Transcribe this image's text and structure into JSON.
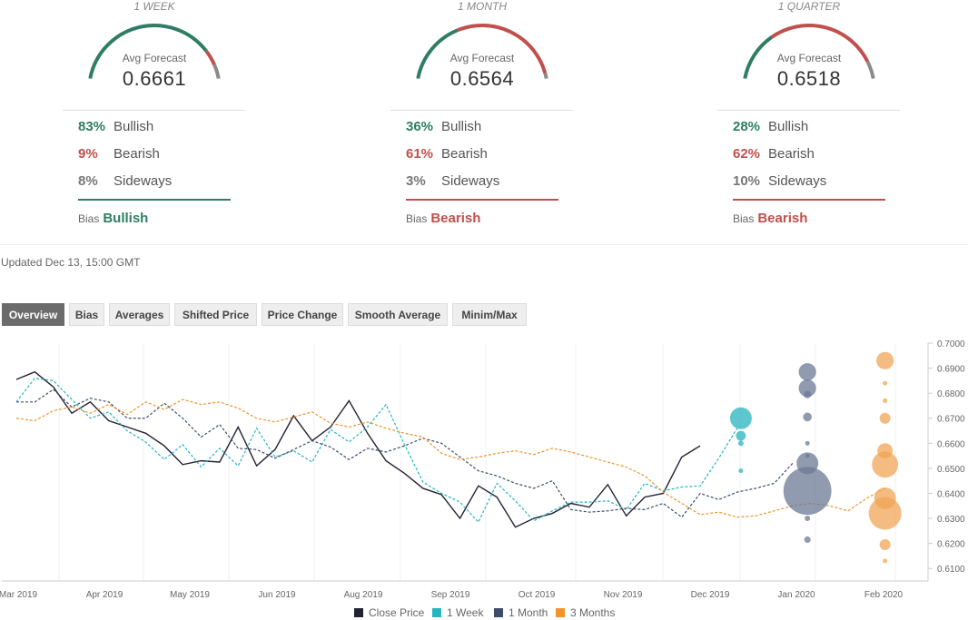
{
  "forecasts": [
    {
      "period": "1 WEEK",
      "avg_label": "Avg Forecast",
      "avg_value": "0.6661",
      "bullish_pct": "83%",
      "bullish_label": "Bullish",
      "bearish_pct": "9%",
      "bearish_label": "Bearish",
      "sideways_pct": "8%",
      "sideways_label": "Sideways",
      "bias_label": "Bias",
      "bias_value": "Bullish",
      "bias_color": "#2e7d64",
      "gauge": {
        "bullish": 0.83,
        "bearish": 0.09,
        "sideways": 0.08
      }
    },
    {
      "period": "1 MONTH",
      "avg_label": "Avg Forecast",
      "avg_value": "0.6564",
      "bullish_pct": "36%",
      "bullish_label": "Bullish",
      "bearish_pct": "61%",
      "bearish_label": "Bearish",
      "sideways_pct": "3%",
      "sideways_label": "Sideways",
      "bias_label": "Bias",
      "bias_value": "Bearish",
      "bias_color": "#c0504d",
      "gauge": {
        "bullish": 0.36,
        "bearish": 0.61,
        "sideways": 0.03
      }
    },
    {
      "period": "1 QUARTER",
      "avg_label": "Avg Forecast",
      "avg_value": "0.6518",
      "bullish_pct": "28%",
      "bullish_label": "Bullish",
      "bearish_pct": "62%",
      "bearish_label": "Bearish",
      "sideways_pct": "10%",
      "sideways_label": "Sideways",
      "bias_label": "Bias",
      "bias_value": "Bearish",
      "bias_color": "#c0504d",
      "gauge": {
        "bullish": 0.28,
        "bearish": 0.62,
        "sideways": 0.1
      }
    }
  ],
  "colors": {
    "bullish": "#2e7d64",
    "bearish": "#c0504d",
    "sideways": "#8a8a8a"
  },
  "updated": "Updated Dec 13, 15:00 GMT",
  "tabs": [
    "Overview",
    "Bias",
    "Averages",
    "Shifted Price",
    "Price Change",
    "Smooth Average",
    "Minim/Max"
  ],
  "active_tab": "Overview",
  "chart_data": {
    "type": "line",
    "x_ticks": [
      "Mar 2019",
      "Apr 2019",
      "May 2019",
      "Jun 2019",
      "Aug 2019",
      "Sep 2019",
      "Oct 2019",
      "Nov 2019",
      "Dec 2019",
      "Jan 2020",
      "Feb 2020"
    ],
    "y_ticks": [
      "0.7000",
      "0.6900",
      "0.6800",
      "0.6700",
      "0.6600",
      "0.6500",
      "0.6400",
      "0.6300",
      "0.6200",
      "0.6100"
    ],
    "ylim": [
      0.605,
      0.7
    ],
    "x_range": [
      0,
      48
    ],
    "series": [
      {
        "name": "Close Price",
        "color": "#222233",
        "dash": false,
        "x": [
          0,
          1,
          2,
          3,
          4,
          5,
          6,
          7,
          8,
          9,
          10,
          11,
          12,
          13,
          14,
          15,
          16,
          17,
          18,
          19,
          20,
          21,
          22,
          23,
          24,
          25,
          26,
          27,
          28,
          29,
          30,
          31,
          32,
          33,
          34,
          35,
          36,
          37
        ],
        "y": [
          0.6855,
          0.6885,
          0.6825,
          0.672,
          0.6765,
          0.669,
          0.6665,
          0.664,
          0.659,
          0.6515,
          0.653,
          0.6525,
          0.6665,
          0.651,
          0.6575,
          0.671,
          0.661,
          0.6665,
          0.677,
          0.664,
          0.653,
          0.648,
          0.642,
          0.6395,
          0.63,
          0.643,
          0.6385,
          0.6265,
          0.63,
          0.632,
          0.636,
          0.6345,
          0.6435,
          0.631,
          0.6385,
          0.64,
          0.6545,
          0.659
        ]
      },
      {
        "name": "1 Week",
        "color": "#27b3bf",
        "dash": true,
        "x": [
          0,
          1,
          2,
          3,
          4,
          5,
          6,
          7,
          8,
          9,
          10,
          11,
          12,
          13,
          14,
          15,
          16,
          17,
          18,
          19,
          20,
          21,
          22,
          23,
          24,
          25,
          26,
          27,
          28,
          29,
          30,
          31,
          32,
          33,
          34,
          35,
          36,
          37,
          38,
          39
        ],
        "y": [
          0.6765,
          0.686,
          0.685,
          0.6775,
          0.67,
          0.6725,
          0.665,
          0.6605,
          0.6535,
          0.6595,
          0.6505,
          0.658,
          0.651,
          0.666,
          0.6545,
          0.657,
          0.6525,
          0.6655,
          0.6605,
          0.6665,
          0.6755,
          0.6595,
          0.6445,
          0.64,
          0.6365,
          0.6285,
          0.644,
          0.637,
          0.629,
          0.633,
          0.6365,
          0.6365,
          0.637,
          0.6335,
          0.644,
          0.641,
          0.6425,
          0.643,
          0.654,
          0.666
        ]
      },
      {
        "name": "1 Month",
        "color": "#3e4d6c",
        "dash": true,
        "x": [
          0,
          1,
          2,
          3,
          4,
          5,
          6,
          7,
          8,
          9,
          10,
          11,
          12,
          13,
          14,
          15,
          16,
          17,
          18,
          19,
          20,
          21,
          22,
          23,
          24,
          25,
          26,
          27,
          28,
          29,
          30,
          31,
          32,
          33,
          34,
          35,
          36,
          37,
          38,
          39,
          40,
          41,
          42
        ],
        "y": [
          0.6765,
          0.6765,
          0.6815,
          0.6745,
          0.678,
          0.6765,
          0.67,
          0.67,
          0.676,
          0.67,
          0.6625,
          0.6675,
          0.658,
          0.6575,
          0.654,
          0.6575,
          0.661,
          0.6585,
          0.6535,
          0.658,
          0.6565,
          0.659,
          0.662,
          0.66,
          0.6545,
          0.649,
          0.647,
          0.644,
          0.642,
          0.645,
          0.6335,
          0.6325,
          0.633,
          0.634,
          0.6335,
          0.636,
          0.6305,
          0.64,
          0.6375,
          0.6405,
          0.642,
          0.644,
          0.652
        ]
      },
      {
        "name": "3 Months",
        "color": "#f0932b",
        "dash": true,
        "x": [
          0,
          1,
          2,
          3,
          4,
          5,
          6,
          7,
          8,
          9,
          10,
          11,
          12,
          13,
          14,
          15,
          16,
          17,
          18,
          19,
          20,
          21,
          22,
          23,
          24,
          25,
          26,
          27,
          28,
          29,
          30,
          31,
          32,
          33,
          34,
          35,
          36,
          37,
          38,
          39,
          40,
          41,
          42,
          43,
          44,
          45,
          46,
          47
        ],
        "y": [
          0.67,
          0.669,
          0.673,
          0.6745,
          0.672,
          0.6755,
          0.6715,
          0.6765,
          0.6735,
          0.6775,
          0.6755,
          0.6765,
          0.674,
          0.67,
          0.6685,
          0.6705,
          0.6725,
          0.668,
          0.6665,
          0.6685,
          0.666,
          0.664,
          0.6625,
          0.656,
          0.6535,
          0.6545,
          0.656,
          0.657,
          0.6555,
          0.658,
          0.6565,
          0.6545,
          0.6525,
          0.6505,
          0.647,
          0.6405,
          0.636,
          0.6315,
          0.6325,
          0.6305,
          0.631,
          0.633,
          0.635,
          0.636,
          0.635,
          0.633,
          0.638,
          0.642
        ]
      }
    ],
    "forecast_bubbles": [
      {
        "series": "1 Week",
        "color": "#27b3bf",
        "x": 39.2,
        "points": [
          {
            "y": 0.67,
            "r": 1.0
          },
          {
            "y": 0.663,
            "r": 0.45
          },
          {
            "y": 0.66,
            "r": 0.25
          },
          {
            "y": 0.649,
            "r": 0.2
          }
        ]
      },
      {
        "series": "1 Month",
        "color": "#6b7a96",
        "x": 42.8,
        "points": [
          {
            "y": 0.6885,
            "r": 0.8
          },
          {
            "y": 0.682,
            "r": 0.8
          },
          {
            "y": 0.6795,
            "r": 0.35
          },
          {
            "y": 0.6705,
            "r": 0.4
          },
          {
            "y": 0.66,
            "r": 0.2
          },
          {
            "y": 0.655,
            "r": 0.2
          },
          {
            "y": 0.652,
            "r": 1.0
          },
          {
            "y": 0.641,
            "r": 2.2
          },
          {
            "y": 0.63,
            "r": 0.25
          },
          {
            "y": 0.6215,
            "r": 0.3
          }
        ]
      },
      {
        "series": "3 Months",
        "color": "#f0a557",
        "x": 47.0,
        "points": [
          {
            "y": 0.693,
            "r": 0.8
          },
          {
            "y": 0.684,
            "r": 0.2
          },
          {
            "y": 0.677,
            "r": 0.2
          },
          {
            "y": 0.67,
            "r": 0.5
          },
          {
            "y": 0.657,
            "r": 0.7
          },
          {
            "y": 0.6515,
            "r": 1.2
          },
          {
            "y": 0.638,
            "r": 1.0
          },
          {
            "y": 0.632,
            "r": 1.5
          },
          {
            "y": 0.6195,
            "r": 0.5
          },
          {
            "y": 0.613,
            "r": 0.2
          }
        ]
      }
    ],
    "legend": [
      "Close Price",
      "1 Week",
      "1 Month",
      "3 Months"
    ],
    "legend_position": "bottom"
  }
}
